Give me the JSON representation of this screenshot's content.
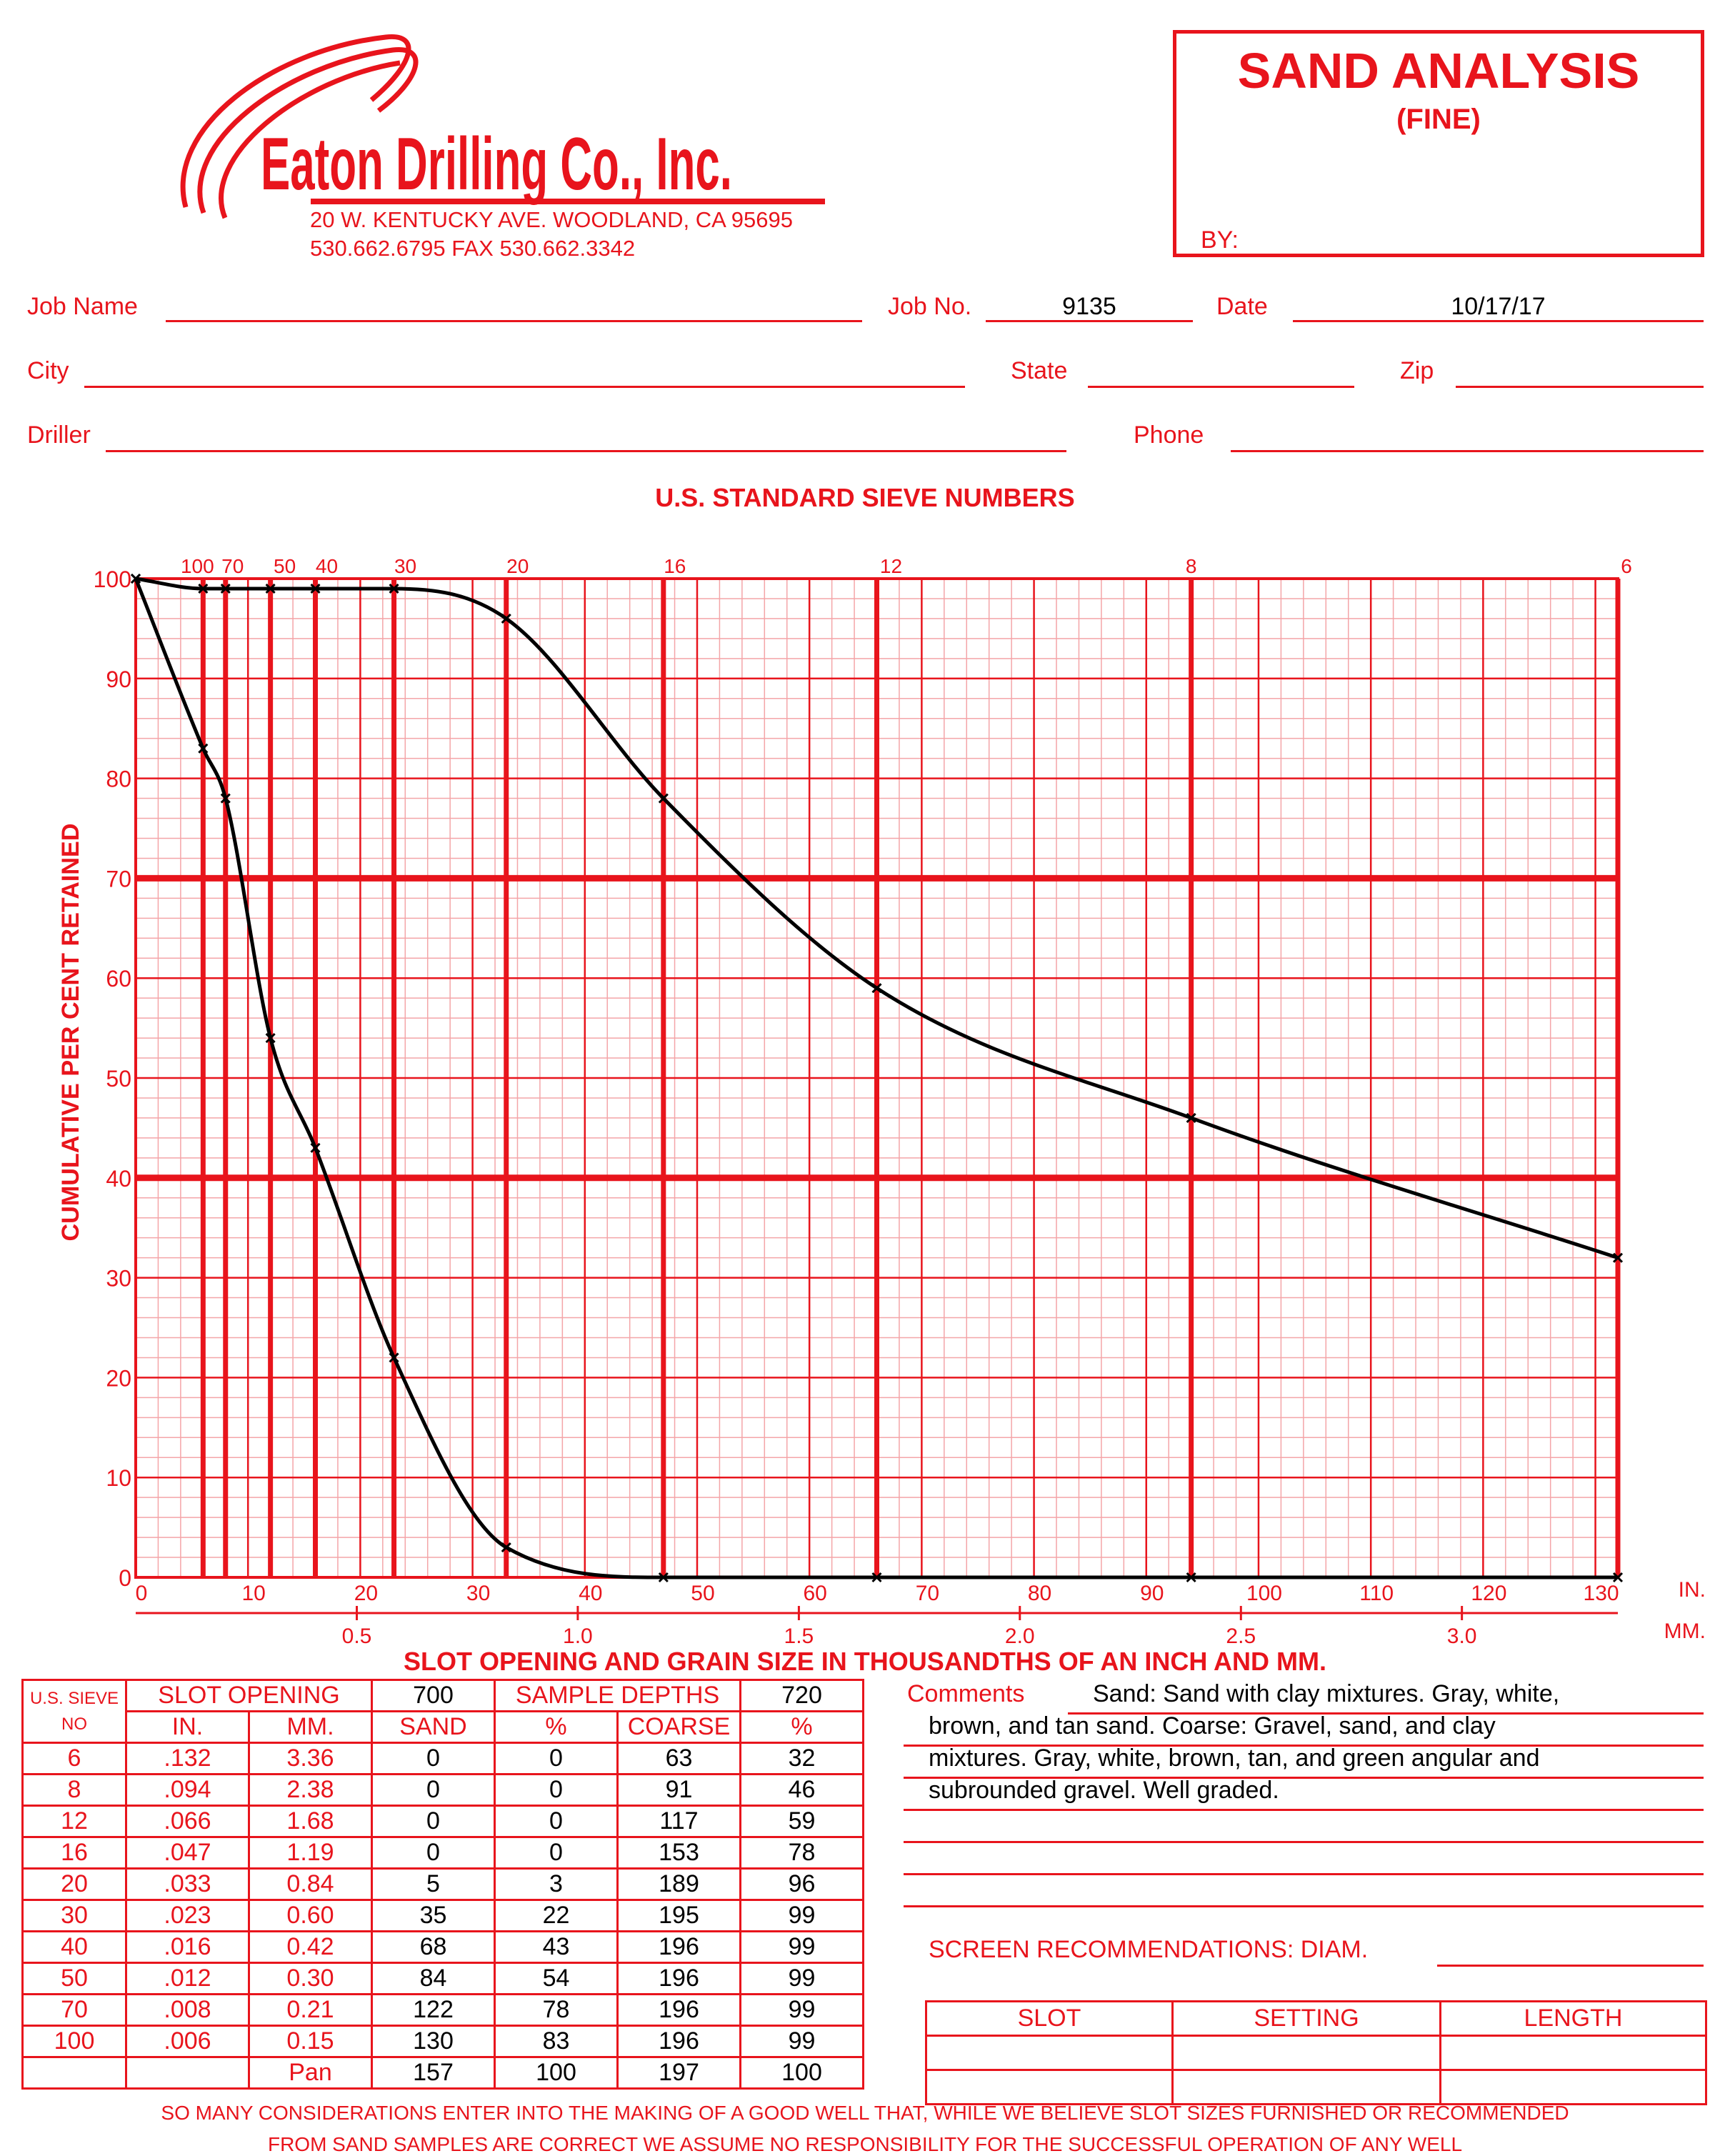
{
  "company": {
    "name": "Eaton Drilling Co., Inc.",
    "address": "20 W. KENTUCKY AVE.   WOODLAND, CA 95695",
    "phones": "530.662.6795   FAX 530.662.3342"
  },
  "title_box": {
    "title": "SAND ANALYSIS",
    "subtitle": "(FINE)",
    "by_label": "BY:"
  },
  "fields": {
    "job_name_label": "Job Name",
    "job_no_label": "Job No.",
    "job_no": "9135",
    "date_label": "Date",
    "date": "10/17/17",
    "city_label": "City",
    "state_label": "State",
    "zip_label": "Zip",
    "driller_label": "Driller",
    "phone_label": "Phone"
  },
  "chart_data": {
    "type": "line",
    "title": "U.S. STANDARD SIEVE NUMBERS",
    "xlabel": "SLOT OPENING AND GRAIN SIZE IN THOUSANDTHS OF AN INCH AND MM.",
    "ylabel": "CUMULATIVE PER CENT RETAINED",
    "x_unit_in": "IN.",
    "x_unit_mm": "MM.",
    "xlim": [
      0,
      132
    ],
    "ylim": [
      0,
      100
    ],
    "x_ticks_in": [
      "0",
      "10",
      "20",
      "30",
      "40",
      "50",
      "60",
      "70",
      "80",
      "90",
      "100",
      "110",
      "120",
      "130"
    ],
    "x_ticks_mm": [
      {
        "x": 19.69,
        "label": "0.5"
      },
      {
        "x": 39.37,
        "label": "1.0"
      },
      {
        "x": 59.06,
        "label": "1.5"
      },
      {
        "x": 78.74,
        "label": "2.0"
      },
      {
        "x": 98.43,
        "label": "2.5"
      },
      {
        "x": 118.11,
        "label": "3.0"
      }
    ],
    "y_ticks": [
      "0",
      "10",
      "20",
      "30",
      "40",
      "50",
      "60",
      "70",
      "80",
      "90",
      "100"
    ],
    "sieves": [
      {
        "label": "100",
        "x": 6
      },
      {
        "label": "70",
        "x": 8
      },
      {
        "label": "50",
        "x": 12
      },
      {
        "label": "40",
        "x": 16
      },
      {
        "label": "30",
        "x": 23
      },
      {
        "label": "20",
        "x": 33
      },
      {
        "label": "16",
        "x": 47
      },
      {
        "label": "12",
        "x": 66
      },
      {
        "label": "8",
        "x": 94
      },
      {
        "label": "6",
        "x": 132
      }
    ],
    "series": [
      {
        "values_x": [
          0,
          6,
          8,
          12,
          16,
          23,
          33,
          47,
          66,
          94,
          132
        ],
        "values_y": [
          100,
          83,
          78,
          54,
          43,
          22,
          3,
          0,
          0,
          0,
          0
        ]
      },
      {
        "values_x": [
          0,
          6,
          8,
          12,
          16,
          23,
          33,
          47,
          66,
          94,
          132
        ],
        "values_y": [
          100,
          99,
          99,
          99,
          99,
          99,
          96,
          78,
          59,
          46,
          32
        ]
      }
    ]
  },
  "table": {
    "head1": [
      "U.S. SIEVE",
      "SLOT OPENING",
      "700",
      "SAMPLE DEPTHS",
      "720"
    ],
    "head1b": "NO",
    "head2": [
      "IN.",
      "MM.",
      "SAND",
      "%",
      "COARSE",
      "%"
    ],
    "rows": [
      [
        "6",
        ".132",
        "3.36",
        "0",
        "0",
        "63",
        "32"
      ],
      [
        "8",
        ".094",
        "2.38",
        "0",
        "0",
        "91",
        "46"
      ],
      [
        "12",
        ".066",
        "1.68",
        "0",
        "0",
        "117",
        "59"
      ],
      [
        "16",
        ".047",
        "1.19",
        "0",
        "0",
        "153",
        "78"
      ],
      [
        "20",
        ".033",
        "0.84",
        "5",
        "3",
        "189",
        "96"
      ],
      [
        "30",
        ".023",
        "0.60",
        "35",
        "22",
        "195",
        "99"
      ],
      [
        "40",
        ".016",
        "0.42",
        "68",
        "43",
        "196",
        "99"
      ],
      [
        "50",
        ".012",
        "0.30",
        "84",
        "54",
        "196",
        "99"
      ],
      [
        "70",
        ".008",
        "0.21",
        "122",
        "78",
        "196",
        "99"
      ],
      [
        "100",
        ".006",
        "0.15",
        "130",
        "83",
        "196",
        "99"
      ],
      [
        "",
        "",
        "Pan",
        "157",
        "100",
        "197",
        "100"
      ]
    ]
  },
  "comments": {
    "label": "Comments",
    "lines": [
      "Sand: Sand with clay mixtures. Gray, white,",
      "brown, and tan sand.  Coarse: Gravel, sand, and clay",
      "mixtures. Gray, white, brown, tan, and green angular and",
      "subrounded gravel. Well graded."
    ]
  },
  "screen": {
    "label": "SCREEN RECOMMENDATIONS: DIAM.",
    "headers": [
      "SLOT",
      "SETTING",
      "LENGTH"
    ]
  },
  "disclaimer": [
    "SO MANY CONSIDERATIONS ENTER INTO THE MAKING OF A GOOD WELL THAT, WHILE WE BELIEVE SLOT SIZES FURNISHED OR RECOMMENDED",
    "FROM SAND SAMPLES ARE CORRECT WE ASSUME NO RESPONSIBILITY FOR THE SUCCESSFUL OPERATION OF ANY WELL"
  ],
  "colors": {
    "form_red": "#e8141c",
    "ink": "#000000"
  }
}
